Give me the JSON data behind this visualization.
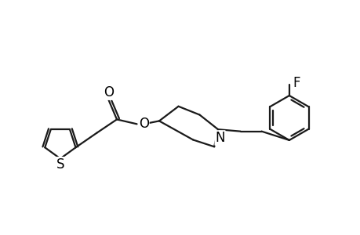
{
  "background_color": "#ffffff",
  "line_color": "#1a1a1a",
  "line_width": 1.6,
  "text_color": "#000000",
  "font_size": 11,
  "figsize": [
    4.6,
    3.0
  ],
  "dpi": 100,
  "xlim": [
    0,
    9.2
  ],
  "ylim": [
    0,
    6
  ]
}
